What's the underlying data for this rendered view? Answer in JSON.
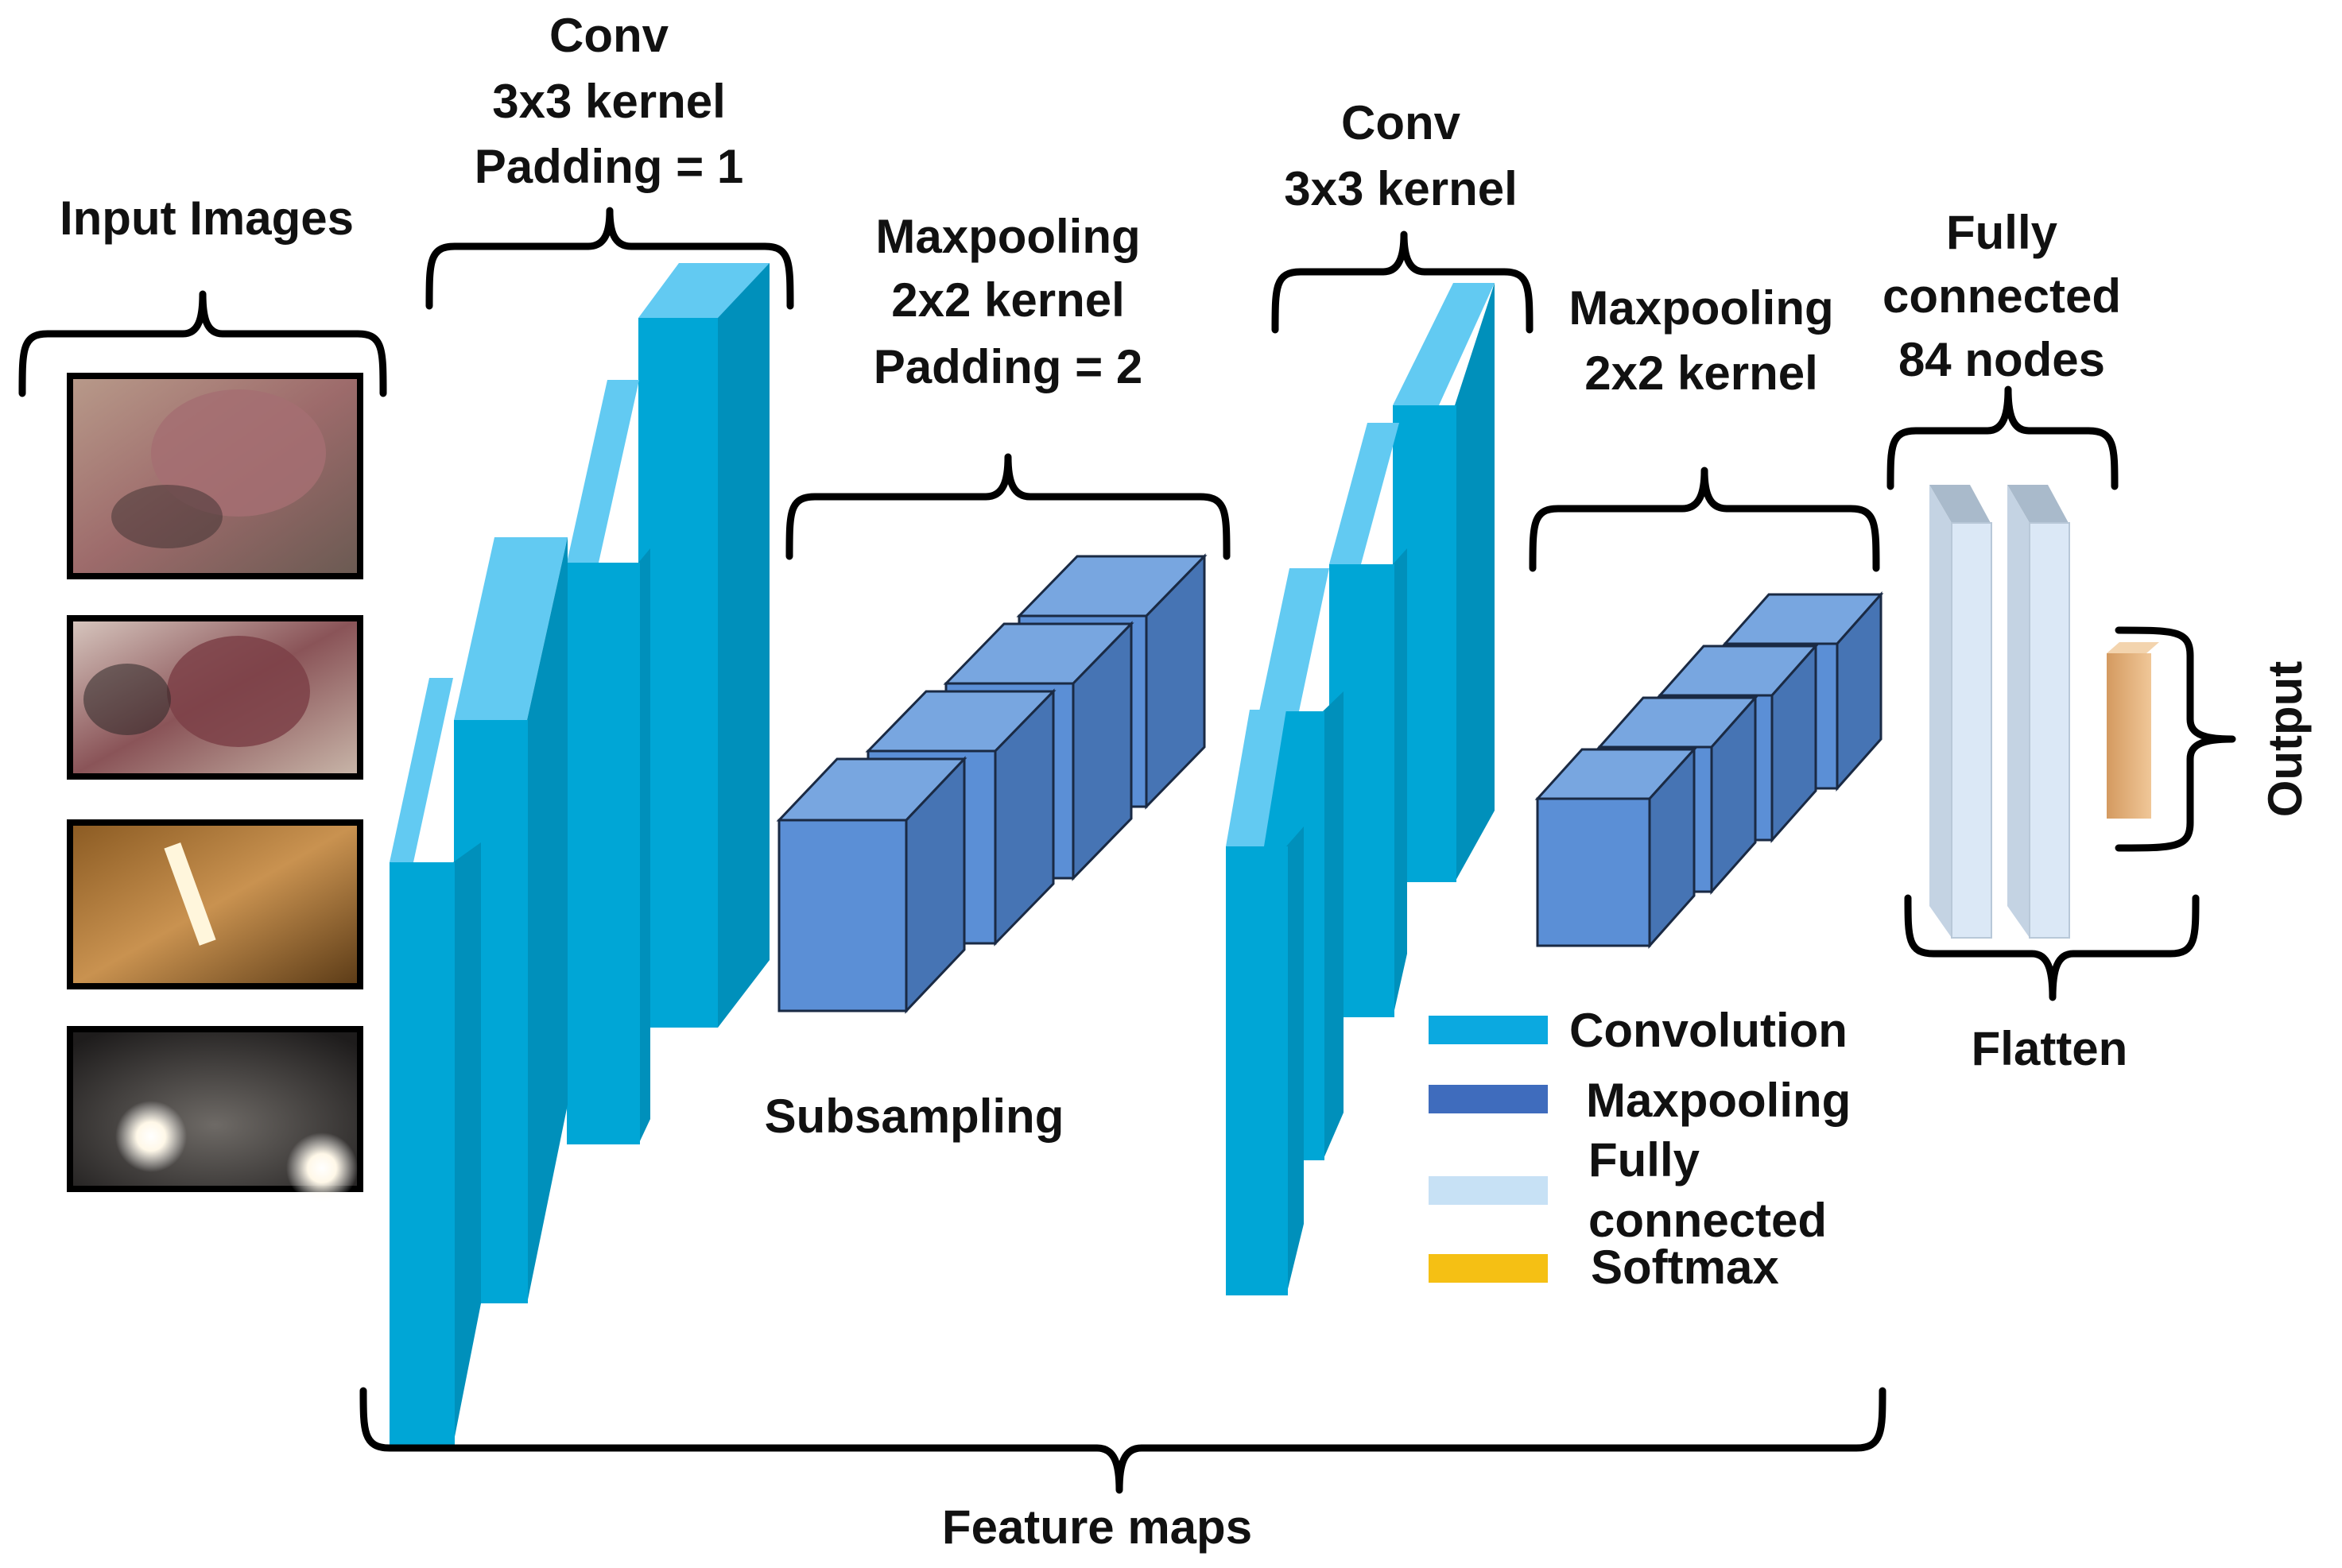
{
  "labels": {
    "input_images": "Input Images",
    "conv1": [
      "Conv",
      "3x3 kernel",
      "Padding  = 1"
    ],
    "pool1": [
      "Maxpooling",
      "2x2 kernel",
      "Padding  = 2"
    ],
    "conv2": [
      "Conv",
      "3x3 kernel"
    ],
    "pool2": [
      "Maxpooling",
      "2x2 kernel"
    ],
    "fc": [
      "Fully",
      "connected",
      "84 nodes"
    ],
    "output": "Output",
    "flatten": "Flatten",
    "subsampling": "Subsampling",
    "feature_maps": "Feature maps"
  },
  "legend": [
    {
      "label": "Convolution",
      "color": "#0ba9e0"
    },
    {
      "label": "Maxpooling",
      "color": "#3f6cbd"
    },
    {
      "label": "Fully",
      "label2": "connected",
      "color": "#c7e1f5"
    },
    {
      "label": "Softmax",
      "color": "#f5c014"
    }
  ],
  "colors": {
    "conv_front": "#00a6d6",
    "conv_top": "#62caf2",
    "conv_side": "#0090bb",
    "pool_front": "#5b8fd6",
    "pool_top": "#78a6e0",
    "pool_side": "#4674b4",
    "fc_front": "#dbe8f6",
    "fc_top": "#a9bacb",
    "softmax_front": "#e8b07a",
    "softmax_top": "#f3d4ae"
  },
  "input_images": [
    {
      "name": "udder-photo-1"
    },
    {
      "name": "udder-photo-2"
    },
    {
      "name": "barn-light-photo"
    },
    {
      "name": "dark-lights-photo"
    }
  ]
}
